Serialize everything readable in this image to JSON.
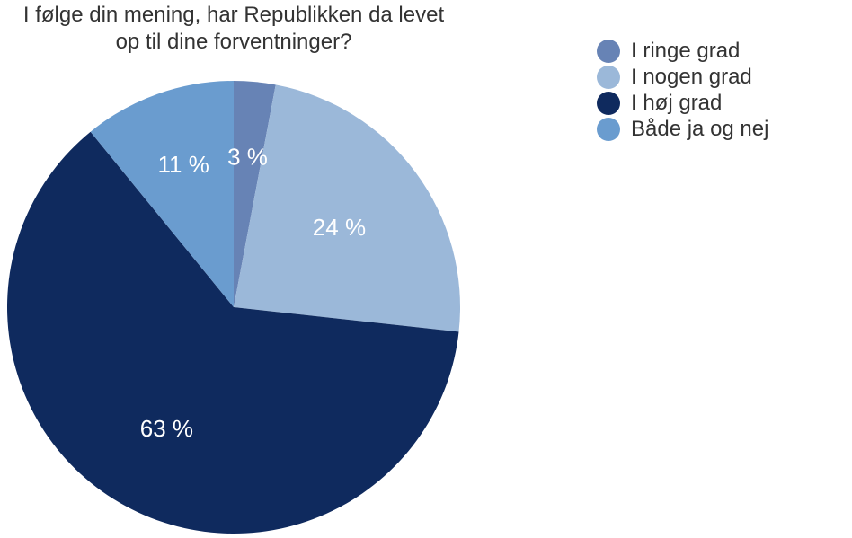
{
  "chart_data": {
    "type": "pie",
    "title_lines": [
      "I følge din mening, har Republikken da levet",
      "op til dine forventninger?"
    ],
    "categories": [
      "I ringe grad",
      "I nogen grad",
      "I høj grad",
      "Både ja og nej"
    ],
    "values": [
      3,
      24,
      63,
      11
    ],
    "data_labels": [
      "3 %",
      "24 %",
      "63 %",
      "11 %"
    ],
    "colors": [
      "#6783b5",
      "#9bb8d9",
      "#0f2a5e",
      "#6a9ccf"
    ],
    "start_angle_deg": 0,
    "direction": "clockwise",
    "legend_position": "top-right"
  }
}
